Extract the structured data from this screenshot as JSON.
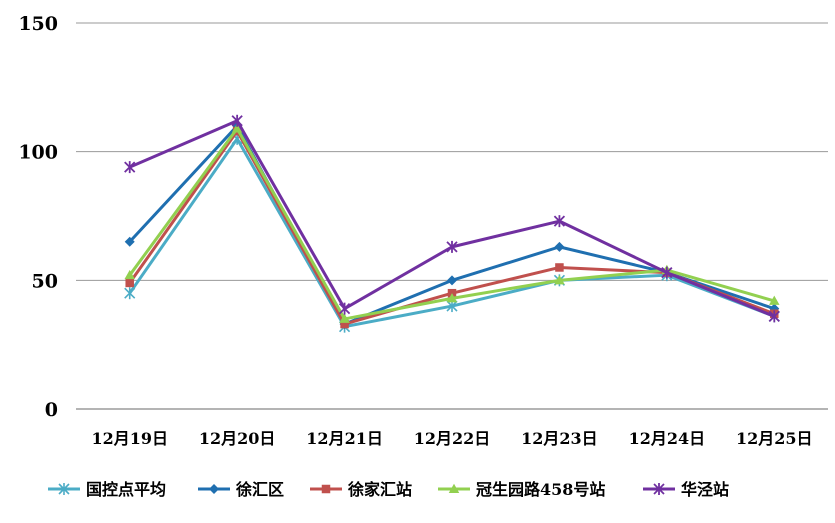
{
  "chart_data": {
    "type": "line",
    "categories": [
      "12月19日",
      "12月20日",
      "12月21日",
      "12月22日",
      "12月23日",
      "12月24日",
      "12月25日"
    ],
    "yticks": [
      "0",
      "50",
      "100",
      "150"
    ],
    "ylim": [
      0,
      150
    ],
    "grid": true,
    "legend_position": "bottom",
    "series": [
      {
        "name": "国控点平均",
        "color": "#4bacc6",
        "marker": "asterisk",
        "values": [
          45,
          105,
          32,
          40,
          50,
          52,
          36
        ]
      },
      {
        "name": "徐汇区",
        "color": "#1f6fb0",
        "marker": "diamond",
        "values": [
          65,
          110,
          33,
          50,
          63,
          53,
          39
        ]
      },
      {
        "name": "徐家汇站",
        "color": "#c0504d",
        "marker": "square",
        "values": [
          49,
          108,
          33,
          45,
          55,
          53,
          37
        ]
      },
      {
        "name": "冠生园路458号站",
        "color": "#92d050",
        "marker": "triangle",
        "values": [
          52,
          109,
          35,
          43,
          50,
          54,
          42
        ]
      },
      {
        "name": "华泾站",
        "color": "#7030a0",
        "marker": "star",
        "values": [
          94,
          112,
          39,
          63,
          73,
          53,
          36
        ]
      }
    ]
  }
}
